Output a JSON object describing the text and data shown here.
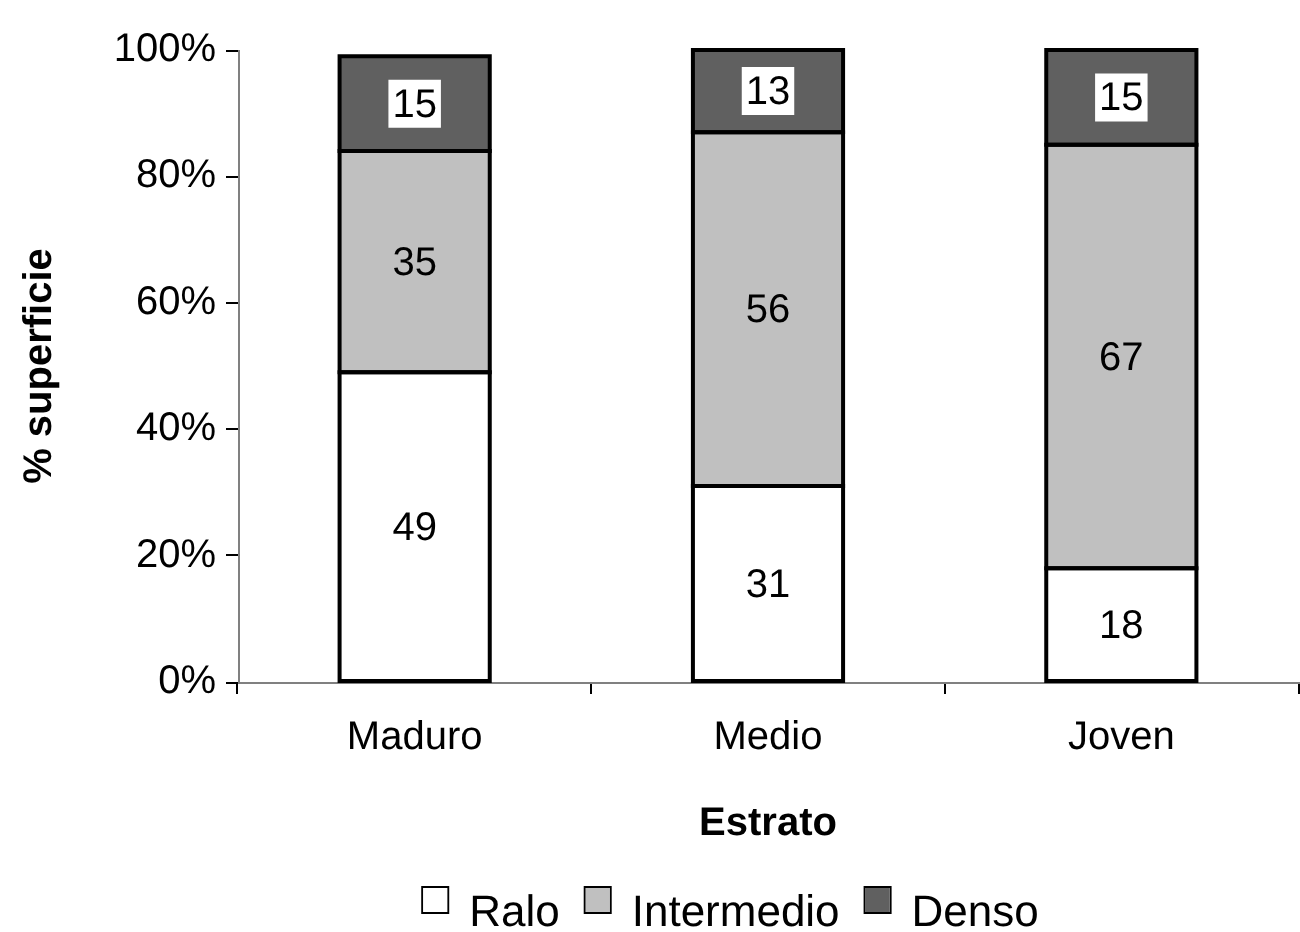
{
  "chart_data": {
    "type": "bar",
    "stacked": true,
    "xlabel": "Estrato",
    "ylabel": "% superficie",
    "categories": [
      "Maduro",
      "Medio",
      "Joven"
    ],
    "series": [
      {
        "name": "Ralo",
        "color": "#ffffff",
        "values": [
          49,
          31,
          18
        ]
      },
      {
        "name": "Intermedio",
        "color": "#c0c0c0",
        "values": [
          35,
          56,
          67
        ]
      },
      {
        "name": "Denso",
        "color": "#606060",
        "values": [
          15,
          13,
          15
        ]
      }
    ],
    "ylim": [
      0,
      100
    ],
    "yticks": [
      {
        "value": 0,
        "label": "0%"
      },
      {
        "value": 20,
        "label": "20%"
      },
      {
        "value": 40,
        "label": "40%"
      },
      {
        "value": 60,
        "label": "60%"
      },
      {
        "value": 80,
        "label": "80%"
      },
      {
        "value": 100,
        "label": "100%"
      }
    ],
    "data_labels": true,
    "grid": false,
    "legend": "bottom"
  }
}
